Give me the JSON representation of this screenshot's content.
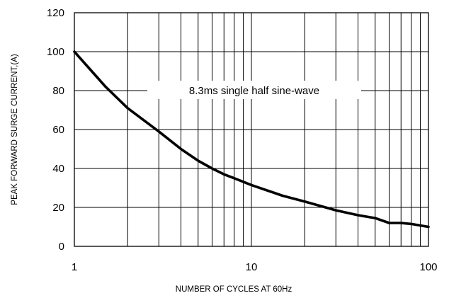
{
  "chart_data": {
    "type": "line",
    "title": "",
    "xlabel": "NUMBER OF CYCLES AT 60Hz",
    "ylabel": "PEAK FORWARD SURGE CURRENT,(A)",
    "x_scale": "log",
    "xlim": [
      1,
      100
    ],
    "ylim": [
      0,
      120
    ],
    "x_ticks": [
      "1",
      "10",
      "100"
    ],
    "y_ticks": [
      "0",
      "20",
      "40",
      "60",
      "80",
      "100",
      "120"
    ],
    "grid": true,
    "annotation": "8.3ms single half sine-wave",
    "series": [
      {
        "x": [
          1,
          1.5,
          2,
          3,
          4,
          5,
          6,
          7,
          8,
          10,
          15,
          20,
          30,
          40,
          50,
          60,
          70,
          80,
          100
        ],
        "y": [
          100,
          82,
          71,
          59,
          50,
          44,
          40,
          37,
          35,
          31.5,
          26,
          23,
          18.5,
          16,
          14.5,
          12,
          12,
          11.5,
          10
        ]
      }
    ]
  }
}
